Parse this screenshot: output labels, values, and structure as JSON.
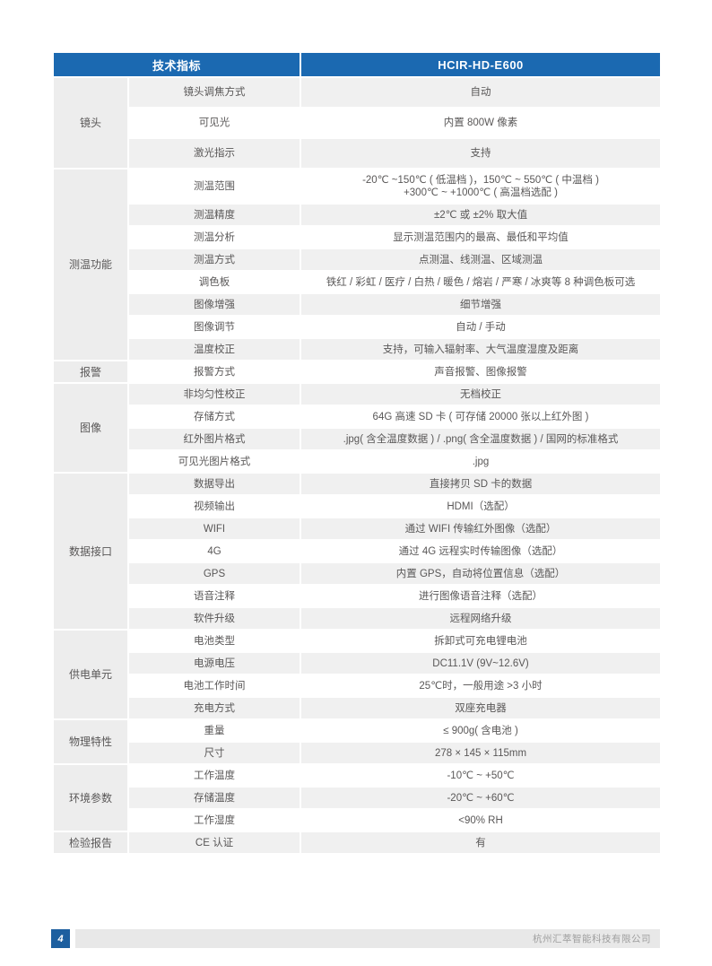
{
  "colors": {
    "header_blue": "#1b69b1",
    "page_number_blue": "#1d5f9f",
    "stripe_gray": "#f0f0f0",
    "group_gray": "#ededed",
    "footer_gray": "#e8e8e8",
    "body_text": "#595757"
  },
  "table": {
    "header": {
      "left": "技术指标",
      "right": "HCIR-HD-E600"
    },
    "groups": [
      {
        "name": "镜头",
        "rows": [
          {
            "param": "镜头调焦方式",
            "value": "自动"
          },
          {
            "param": "可见光",
            "value": "内置 800W 像素"
          },
          {
            "param": "激光指示",
            "value": "支持"
          }
        ]
      },
      {
        "name": "测温功能",
        "rows": [
          {
            "param": "测温范围",
            "value": "-20℃ ~150℃ ( 低温档 )，150℃ ~ 550℃ ( 中温档 )\n+300℃ ~ +1000℃ ( 高温档选配 )"
          },
          {
            "param": "测温精度",
            "value": "±2℃ 或 ±2% 取大值"
          },
          {
            "param": "测温分析",
            "value": "显示测温范围内的最高、最低和平均值"
          },
          {
            "param": "测温方式",
            "value": "点测温、线测温、区域测温"
          },
          {
            "param": "调色板",
            "value": "铁红 / 彩虹 / 医疗 / 白热 / 暖色 / 熔岩 / 严寒 / 冰爽等 8 种调色板可选"
          },
          {
            "param": "图像增强",
            "value": "细节增强"
          },
          {
            "param": "图像调节",
            "value": "自动 / 手动"
          },
          {
            "param": "温度校正",
            "value": "支持，可输入辐射率、大气温度湿度及距离"
          }
        ]
      },
      {
        "name": "报警",
        "rows": [
          {
            "param": "报警方式",
            "value": "声音报警、图像报警"
          }
        ]
      },
      {
        "name": "图像",
        "rows": [
          {
            "param": "非均匀性校正",
            "value": "无档校正"
          },
          {
            "param": "存储方式",
            "value": "64G 高速 SD 卡 ( 可存储 20000 张以上红外图 )"
          },
          {
            "param": "红外图片格式",
            "value": ".jpg( 含全温度数据 ) / .png( 含全温度数据 ) / 国网的标准格式"
          },
          {
            "param": "可见光图片格式",
            "value": ".jpg"
          }
        ]
      },
      {
        "name": "数据接口",
        "rows": [
          {
            "param": "数据导出",
            "value": "直接拷贝 SD 卡的数据"
          },
          {
            "param": "视频输出",
            "value": "HDMI（选配）"
          },
          {
            "param": "WIFI",
            "value": "通过 WIFI 传输红外图像（选配）"
          },
          {
            "param": "4G",
            "value": "通过 4G 远程实时传输图像（选配）"
          },
          {
            "param": "GPS",
            "value": "内置 GPS，自动将位置信息（选配）"
          },
          {
            "param": "语音注释",
            "value": "进行图像语音注释（选配）"
          },
          {
            "param": "软件升级",
            "value": "远程网络升级"
          }
        ]
      },
      {
        "name": "供电单元",
        "rows": [
          {
            "param": "电池类型",
            "value": "拆卸式可充电锂电池"
          },
          {
            "param": "电源电压",
            "value": "DC11.1V (9V~12.6V)"
          },
          {
            "param": "电池工作时间",
            "value": "25℃时，一般用途 >3 小时"
          },
          {
            "param": "充电方式",
            "value": "双座充电器"
          }
        ]
      },
      {
        "name": "物理特性",
        "rows": [
          {
            "param": "重量",
            "value": "≤ 900g( 含电池 )"
          },
          {
            "param": "尺寸",
            "value": "278 × 145 × 115mm"
          }
        ]
      },
      {
        "name": "环境参数",
        "rows": [
          {
            "param": "工作温度",
            "value": "-10℃ ~ +50℃"
          },
          {
            "param": "存储温度",
            "value": "-20℃ ~ +60℃"
          },
          {
            "param": "工作湿度",
            "value": "<90% RH"
          }
        ]
      },
      {
        "name": "检验报告",
        "rows": [
          {
            "param": "CE 认证",
            "value": "有"
          }
        ]
      }
    ]
  },
  "footer": {
    "page_number": "4",
    "company": "杭州汇萃智能科技有限公司"
  }
}
